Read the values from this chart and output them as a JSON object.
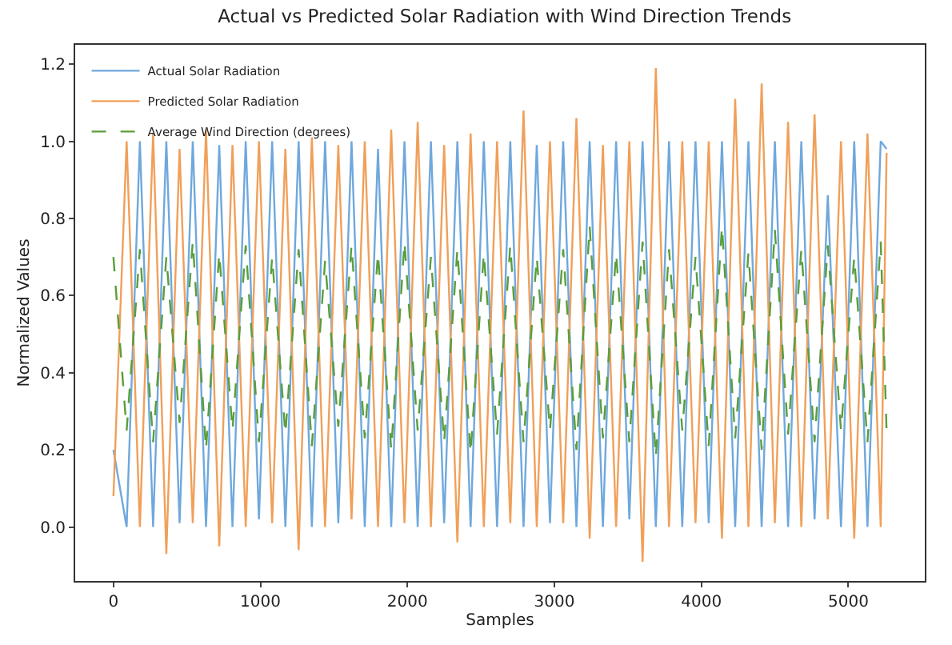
{
  "chart_data": {
    "type": "line",
    "title": "Actual vs Predicted Solar Radiation with Wind Direction Trends",
    "xlabel": "Samples",
    "ylabel": "Normalized Values",
    "x": [
      0,
      90,
      180,
      270,
      360,
      450,
      540,
      630,
      720,
      810,
      900,
      990,
      1080,
      1170,
      1260,
      1350,
      1440,
      1530,
      1620,
      1710,
      1800,
      1890,
      1980,
      2070,
      2160,
      2250,
      2340,
      2430,
      2520,
      2610,
      2700,
      2790,
      2880,
      2970,
      3060,
      3150,
      3240,
      3330,
      3420,
      3510,
      3600,
      3690,
      3780,
      3870,
      3960,
      4050,
      4140,
      4230,
      4320,
      4410,
      4500,
      4590,
      4680,
      4770,
      4860,
      4950,
      5040,
      5130,
      5220,
      5260
    ],
    "series": [
      {
        "name": "Actual Solar Radiation",
        "color": "#6fa8dc",
        "line_style": "solid",
        "values": [
          0.2,
          0.0,
          1.0,
          0.0,
          1.0,
          0.01,
          1.0,
          0.0,
          0.99,
          0.0,
          1.0,
          0.02,
          1.0,
          0.0,
          1.0,
          0.0,
          1.0,
          0.01,
          1.0,
          0.0,
          0.98,
          0.0,
          1.0,
          0.0,
          1.0,
          0.01,
          1.0,
          0.0,
          1.0,
          0.0,
          1.0,
          0.0,
          0.99,
          0.01,
          1.0,
          0.0,
          1.0,
          0.0,
          1.0,
          0.02,
          1.0,
          0.0,
          1.0,
          0.0,
          1.0,
          0.01,
          1.0,
          0.0,
          1.0,
          0.0,
          1.0,
          0.0,
          1.0,
          0.02,
          0.86,
          0.0,
          1.0,
          0.0,
          1.0,
          0.98
        ]
      },
      {
        "name": "Predicted Solar Radiation",
        "color": "#f0a05a",
        "line_style": "solid",
        "values": [
          0.08,
          1.0,
          0.0,
          1.02,
          -0.07,
          0.98,
          0.01,
          1.03,
          -0.05,
          0.99,
          0.0,
          1.0,
          0.01,
          0.98,
          -0.06,
          1.01,
          0.0,
          0.99,
          0.02,
          1.0,
          0.0,
          1.03,
          0.01,
          1.05,
          0.0,
          0.99,
          -0.04,
          1.02,
          0.0,
          1.0,
          0.01,
          1.08,
          0.0,
          1.0,
          0.01,
          1.06,
          -0.03,
          0.99,
          0.0,
          1.0,
          -0.09,
          1.19,
          0.0,
          1.0,
          0.01,
          1.0,
          -0.03,
          1.11,
          0.0,
          1.15,
          0.01,
          1.05,
          0.0,
          1.07,
          0.02,
          1.0,
          -0.03,
          1.02,
          0.0,
          0.97
        ]
      },
      {
        "name": "Average Wind Direction (degrees)",
        "color": "#5a9e3a",
        "line_style": "dashed",
        "values": [
          0.7,
          0.25,
          0.72,
          0.22,
          0.7,
          0.27,
          0.74,
          0.2,
          0.71,
          0.25,
          0.73,
          0.22,
          0.7,
          0.24,
          0.72,
          0.21,
          0.69,
          0.26,
          0.73,
          0.23,
          0.71,
          0.2,
          0.74,
          0.25,
          0.7,
          0.22,
          0.72,
          0.19,
          0.71,
          0.24,
          0.73,
          0.22,
          0.7,
          0.25,
          0.72,
          0.2,
          0.78,
          0.23,
          0.71,
          0.22,
          0.74,
          0.18,
          0.72,
          0.25,
          0.7,
          0.21,
          0.78,
          0.23,
          0.71,
          0.2,
          0.77,
          0.24,
          0.72,
          0.22,
          0.73,
          0.25,
          0.7,
          0.22,
          0.74,
          0.25
        ]
      }
    ],
    "xlim": [
      -260,
      5520
    ],
    "xticks": [
      0,
      1000,
      2000,
      3000,
      4000,
      5000
    ],
    "ylim": [
      -0.14,
      1.25
    ],
    "yticks": [
      {
        "value": 0,
        "label": "0.0"
      },
      {
        "value": 0.2,
        "label": "0.2"
      },
      {
        "value": 0.4,
        "label": "0.4"
      },
      {
        "value": 0.6,
        "label": "0.6"
      },
      {
        "value": 0.8,
        "label": "0.8"
      },
      {
        "value": 1.0,
        "label": "1.0"
      },
      {
        "value": 1.2,
        "label": "1.2"
      }
    ],
    "grid": false,
    "legend": "top left",
    "marker": "none"
  }
}
